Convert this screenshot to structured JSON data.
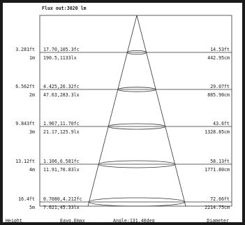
{
  "header": {
    "flux": "Flux out:3020 lm"
  },
  "footer": {
    "height": "Height",
    "lux": "Eavg,Emax",
    "angle": "Angle:131.40deg",
    "diameter": "Diameter"
  },
  "rows": [
    {
      "dist_ft": "3.281ft",
      "dist_m": "1m",
      "fc": "17.70,105.3fc",
      "lx": "190.5,1133lx",
      "dia_ft": "14.53ft",
      "dia_cm": "442.95cm"
    },
    {
      "dist_ft": "6.562ft",
      "dist_m": "2m",
      "fc": "4.425,26.32fc",
      "lx": "47.63,283.3lx",
      "dia_ft": "29.07ft",
      "dia_cm": "885.90cm"
    },
    {
      "dist_ft": "9.843ft",
      "dist_m": "3m",
      "fc": "1.967,11.70fc",
      "lx": "21.17,125.9lx",
      "dia_ft": "43.6ft",
      "dia_cm": "1328.85cm"
    },
    {
      "dist_ft": "13.12ft",
      "dist_m": "4m",
      "fc": "1.106,6.581fc",
      "lx": "11.91,70.83lx",
      "dia_ft": "58.13ft",
      "dia_cm": "1771.80cm"
    },
    {
      "dist_ft": "16.4ft",
      "dist_m": "5m",
      "fc": "0.7080,4.212fc",
      "lx": "7.621,45.33lx",
      "dia_ft": "72.66ft",
      "dia_cm": "2214.75cm"
    }
  ]
}
